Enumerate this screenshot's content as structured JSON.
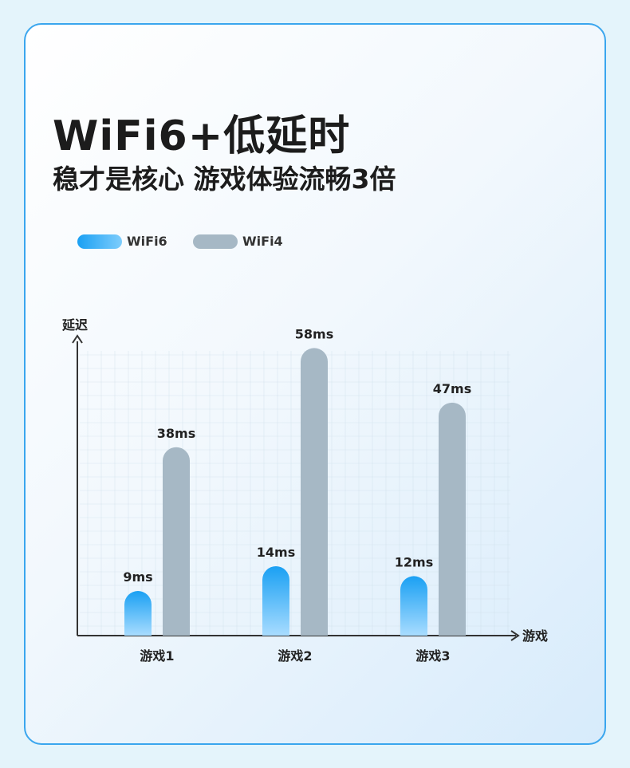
{
  "title": "WiFi6+低延时",
  "subtitle": "稳才是核心 游戏体验流畅3倍",
  "colors": {
    "wifi6_top": "#1aa0f3",
    "wifi6_bottom": "#a8dcff",
    "wifi4": "#a6b8c5",
    "border": "#3aa6ee",
    "axis": "#333333"
  },
  "chart_data": {
    "type": "bar",
    "ylabel": "延迟",
    "xlabel": "游戏",
    "categories": [
      "游戏1",
      "游戏2",
      "游戏3"
    ],
    "series": [
      {
        "name": "WiFi6",
        "values": [
          9,
          14,
          12
        ],
        "labels": [
          "9ms",
          "14ms",
          "12ms"
        ]
      },
      {
        "name": "WiFi4",
        "values": [
          38,
          58,
          47
        ],
        "labels": [
          "38ms",
          "58ms",
          "47ms"
        ]
      }
    ],
    "ylim": [
      0,
      60
    ],
    "grid": true,
    "legend": "top-left"
  }
}
